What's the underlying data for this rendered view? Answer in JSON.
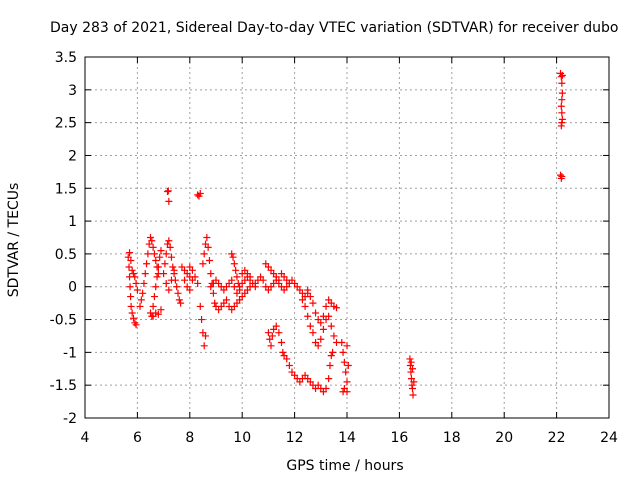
{
  "chart_data": {
    "type": "scatter",
    "title": "Day 283 of 2021, Sidereal Day-to-day VTEC variation (SDTVAR) for receiver dubo",
    "xlabel": "GPS time / hours",
    "ylabel": "SDTVAR / TECUs",
    "xlim": [
      4,
      24
    ],
    "ylim": [
      -2,
      3.5
    ],
    "xticks": [
      4,
      6,
      8,
      10,
      12,
      14,
      16,
      18,
      20,
      22,
      24
    ],
    "yticks": [
      -2,
      -1.5,
      -1,
      -0.5,
      0,
      0.5,
      1,
      1.5,
      2,
      2.5,
      3,
      3.5
    ],
    "grid": true,
    "marker": "+",
    "color": "#ff0000",
    "series": [
      {
        "name": "SDTVAR",
        "points": [
          [
            5.65,
            0.45
          ],
          [
            5.68,
            0.3
          ],
          [
            5.7,
            0.15
          ],
          [
            5.72,
            0.0
          ],
          [
            5.74,
            -0.15
          ],
          [
            5.76,
            -0.3
          ],
          [
            5.8,
            -0.4
          ],
          [
            5.85,
            -0.48
          ],
          [
            5.9,
            -0.55
          ],
          [
            5.95,
            -0.58
          ],
          [
            5.7,
            0.52
          ],
          [
            5.75,
            0.4
          ],
          [
            5.8,
            0.25
          ],
          [
            5.85,
            0.2
          ],
          [
            5.9,
            0.15
          ],
          [
            5.95,
            0.05
          ],
          [
            6.0,
            -0.05
          ],
          [
            6.1,
            -0.3
          ],
          [
            6.15,
            -0.2
          ],
          [
            6.2,
            -0.1
          ],
          [
            6.25,
            0.05
          ],
          [
            6.3,
            0.2
          ],
          [
            6.35,
            0.35
          ],
          [
            6.4,
            0.5
          ],
          [
            6.45,
            0.65
          ],
          [
            6.5,
            0.75
          ],
          [
            6.55,
            0.7
          ],
          [
            6.6,
            0.6
          ],
          [
            6.65,
            0.5
          ],
          [
            6.7,
            0.4
          ],
          [
            6.75,
            0.3
          ],
          [
            6.8,
            0.2
          ],
          [
            6.5,
            -0.4
          ],
          [
            6.55,
            -0.45
          ],
          [
            6.6,
            -0.3
          ],
          [
            6.65,
            -0.15
          ],
          [
            6.7,
            0.0
          ],
          [
            6.75,
            0.15
          ],
          [
            6.8,
            0.3
          ],
          [
            6.85,
            0.45
          ],
          [
            6.9,
            0.55
          ],
          [
            6.6,
            -0.45
          ],
          [
            6.7,
            -0.4
          ],
          [
            6.8,
            -0.42
          ],
          [
            6.9,
            -0.35
          ],
          [
            7.0,
            0.2
          ],
          [
            7.05,
            0.35
          ],
          [
            7.1,
            0.5
          ],
          [
            7.15,
            0.65
          ],
          [
            7.2,
            0.7
          ],
          [
            7.25,
            0.6
          ],
          [
            7.3,
            0.45
          ],
          [
            7.35,
            0.3
          ],
          [
            7.4,
            0.2
          ],
          [
            7.45,
            0.1
          ],
          [
            7.5,
            0.0
          ],
          [
            7.55,
            -0.1
          ],
          [
            7.6,
            -0.2
          ],
          [
            7.65,
            -0.25
          ],
          [
            7.1,
            0.05
          ],
          [
            7.2,
            -0.05
          ],
          [
            7.3,
            0.1
          ],
          [
            7.4,
            0.25
          ],
          [
            7.15,
            1.45
          ],
          [
            7.18,
            1.46
          ],
          [
            7.2,
            1.3
          ],
          [
            8.3,
            1.4
          ],
          [
            8.35,
            1.38
          ],
          [
            8.4,
            1.42
          ],
          [
            7.7,
            0.3
          ],
          [
            7.8,
            0.25
          ],
          [
            7.9,
            0.2
          ],
          [
            8.0,
            0.15
          ],
          [
            8.1,
            0.1
          ],
          [
            8.2,
            0.15
          ],
          [
            8.3,
            0.05
          ],
          [
            8.0,
            0.3
          ],
          [
            8.1,
            0.25
          ],
          [
            7.8,
            0.1
          ],
          [
            7.9,
            0.0
          ],
          [
            8.0,
            -0.05
          ],
          [
            8.4,
            -0.3
          ],
          [
            8.45,
            -0.5
          ],
          [
            8.5,
            -0.7
          ],
          [
            8.55,
            -0.9
          ],
          [
            8.6,
            -0.75
          ],
          [
            8.5,
            0.35
          ],
          [
            8.55,
            0.5
          ],
          [
            8.6,
            0.65
          ],
          [
            8.65,
            0.75
          ],
          [
            8.7,
            0.6
          ],
          [
            8.75,
            0.4
          ],
          [
            8.8,
            0.2
          ],
          [
            8.85,
            0.05
          ],
          [
            8.9,
            -0.1
          ],
          [
            8.95,
            -0.25
          ],
          [
            9.0,
            -0.3
          ],
          [
            9.1,
            -0.35
          ],
          [
            9.2,
            -0.3
          ],
          [
            9.3,
            -0.25
          ],
          [
            9.4,
            -0.2
          ],
          [
            9.5,
            -0.3
          ],
          [
            9.6,
            -0.35
          ],
          [
            9.7,
            -0.3
          ],
          [
            9.8,
            -0.25
          ],
          [
            9.9,
            -0.2
          ],
          [
            10.0,
            -0.15
          ],
          [
            10.1,
            -0.1
          ],
          [
            10.2,
            -0.05
          ],
          [
            10.3,
            0.0
          ],
          [
            8.8,
            0.0
          ],
          [
            8.9,
            0.05
          ],
          [
            9.0,
            0.1
          ],
          [
            9.1,
            0.05
          ],
          [
            9.2,
            0.0
          ],
          [
            9.3,
            -0.05
          ],
          [
            9.4,
            0.0
          ],
          [
            9.5,
            0.05
          ],
          [
            9.6,
            0.1
          ],
          [
            9.7,
            0.0
          ],
          [
            9.8,
            -0.1
          ],
          [
            9.9,
            0.0
          ],
          [
            10.0,
            0.05
          ],
          [
            10.1,
            0.1
          ],
          [
            10.2,
            0.15
          ],
          [
            10.3,
            0.1
          ],
          [
            10.4,
            0.05
          ],
          [
            10.5,
            0.0
          ],
          [
            9.6,
            0.5
          ],
          [
            9.65,
            0.45
          ],
          [
            9.7,
            0.35
          ],
          [
            9.75,
            0.25
          ],
          [
            9.8,
            0.15
          ],
          [
            9.85,
            0.05
          ],
          [
            9.9,
            -0.05
          ],
          [
            10.0,
            0.2
          ],
          [
            10.1,
            0.25
          ],
          [
            10.2,
            0.2
          ],
          [
            10.3,
            0.15
          ],
          [
            10.5,
            0.05
          ],
          [
            10.6,
            0.1
          ],
          [
            10.7,
            0.15
          ],
          [
            10.8,
            0.1
          ],
          [
            10.9,
            0.0
          ],
          [
            11.0,
            -0.05
          ],
          [
            11.1,
            0.0
          ],
          [
            11.2,
            0.05
          ],
          [
            11.3,
            0.1
          ],
          [
            11.4,
            0.05
          ],
          [
            11.5,
            0.0
          ],
          [
            11.6,
            -0.05
          ],
          [
            11.7,
            0.0
          ],
          [
            11.8,
            0.05
          ],
          [
            11.9,
            0.1
          ],
          [
            12.0,
            0.05
          ],
          [
            12.1,
            0.0
          ],
          [
            12.2,
            -0.05
          ],
          [
            12.3,
            -0.1
          ],
          [
            12.4,
            -0.15
          ],
          [
            12.5,
            -0.1
          ],
          [
            10.9,
            0.35
          ],
          [
            11.0,
            0.3
          ],
          [
            11.1,
            0.25
          ],
          [
            11.2,
            0.2
          ],
          [
            11.3,
            0.15
          ],
          [
            11.4,
            0.1
          ],
          [
            11.5,
            0.2
          ],
          [
            11.6,
            0.15
          ],
          [
            11.7,
            0.1
          ],
          [
            11.8,
            0.05
          ],
          [
            11.0,
            -0.7
          ],
          [
            11.05,
            -0.8
          ],
          [
            11.1,
            -0.9
          ],
          [
            11.15,
            -0.75
          ],
          [
            11.2,
            -0.65
          ],
          [
            11.3,
            -0.6
          ],
          [
            11.4,
            -0.7
          ],
          [
            11.5,
            -0.85
          ],
          [
            11.55,
            -1.0
          ],
          [
            11.6,
            -1.05
          ],
          [
            11.7,
            -1.1
          ],
          [
            11.8,
            -1.2
          ],
          [
            11.9,
            -1.3
          ],
          [
            12.0,
            -1.35
          ],
          [
            12.1,
            -1.4
          ],
          [
            12.2,
            -1.45
          ],
          [
            12.3,
            -1.4
          ],
          [
            12.4,
            -1.35
          ],
          [
            12.5,
            -1.4
          ],
          [
            12.6,
            -1.45
          ],
          [
            12.7,
            -1.5
          ],
          [
            12.8,
            -1.55
          ],
          [
            12.9,
            -1.5
          ],
          [
            13.0,
            -1.55
          ],
          [
            13.1,
            -1.6
          ],
          [
            13.2,
            -1.55
          ],
          [
            13.3,
            -1.4
          ],
          [
            13.35,
            -1.2
          ],
          [
            13.4,
            -1.05
          ],
          [
            13.45,
            -1.0
          ],
          [
            12.3,
            -0.2
          ],
          [
            12.4,
            -0.3
          ],
          [
            12.5,
            -0.45
          ],
          [
            12.6,
            -0.6
          ],
          [
            12.7,
            -0.7
          ],
          [
            12.8,
            -0.85
          ],
          [
            12.9,
            -0.9
          ],
          [
            13.0,
            -0.8
          ],
          [
            13.1,
            -0.65
          ],
          [
            13.2,
            -0.5
          ],
          [
            13.3,
            -0.45
          ],
          [
            13.4,
            -0.6
          ],
          [
            13.5,
            -0.75
          ],
          [
            13.6,
            -0.85
          ],
          [
            12.5,
            -0.05
          ],
          [
            12.6,
            -0.15
          ],
          [
            12.7,
            -0.25
          ],
          [
            12.8,
            -0.4
          ],
          [
            12.9,
            -0.5
          ],
          [
            13.0,
            -0.55
          ],
          [
            13.1,
            -0.45
          ],
          [
            13.2,
            -0.3
          ],
          [
            13.3,
            -0.2
          ],
          [
            13.4,
            -0.25
          ],
          [
            13.5,
            -0.3
          ],
          [
            13.6,
            -0.32
          ],
          [
            13.8,
            -0.85
          ],
          [
            13.85,
            -1.0
          ],
          [
            13.9,
            -1.15
          ],
          [
            13.95,
            -1.3
          ],
          [
            14.0,
            -1.45
          ],
          [
            13.9,
            -1.55
          ],
          [
            14.0,
            -1.6
          ],
          [
            14.05,
            -1.2
          ],
          [
            14.0,
            -0.9
          ],
          [
            13.85,
            -1.6
          ],
          [
            16.4,
            -1.1
          ],
          [
            16.42,
            -1.2
          ],
          [
            16.44,
            -1.3
          ],
          [
            16.46,
            -1.4
          ],
          [
            16.48,
            -1.5
          ],
          [
            16.5,
            -1.55
          ],
          [
            16.52,
            -1.65
          ],
          [
            16.55,
            -1.45
          ],
          [
            16.5,
            -1.25
          ],
          [
            16.45,
            -1.15
          ],
          [
            22.15,
            3.25
          ],
          [
            22.18,
            3.2
          ],
          [
            22.2,
            3.1
          ],
          [
            22.22,
            2.95
          ],
          [
            22.2,
            2.85
          ],
          [
            22.18,
            2.75
          ],
          [
            22.2,
            2.65
          ],
          [
            22.22,
            2.55
          ],
          [
            22.2,
            2.5
          ],
          [
            22.18,
            2.45
          ],
          [
            22.22,
            3.22
          ],
          [
            22.15,
            1.7
          ],
          [
            22.18,
            1.65
          ],
          [
            22.2,
            1.68
          ]
        ]
      }
    ]
  }
}
